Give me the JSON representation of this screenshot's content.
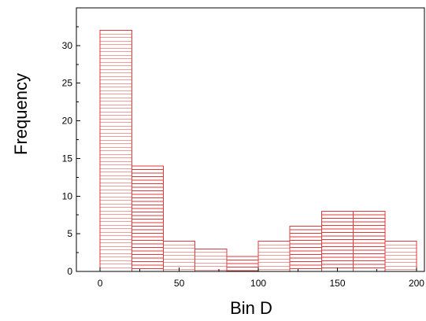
{
  "chart_data": {
    "type": "bar",
    "bin_edges": [
      0,
      20,
      40,
      60,
      80,
      100,
      120,
      140,
      160,
      180,
      200
    ],
    "values": [
      32,
      14,
      4,
      3,
      2,
      4,
      6,
      8,
      8,
      4
    ],
    "xlabel": "Bin D",
    "ylabel": "Frequency",
    "xlim": [
      -15,
      205
    ],
    "ylim": [
      0,
      35
    ],
    "x_ticks": [
      0,
      50,
      100,
      150,
      200
    ],
    "y_ticks": [
      0,
      5,
      10,
      15,
      20,
      25,
      30
    ],
    "grid": false,
    "bar_style": "horizontal-hatch",
    "colors": {
      "bar": "#e03a3a",
      "axis": "#000000"
    }
  }
}
